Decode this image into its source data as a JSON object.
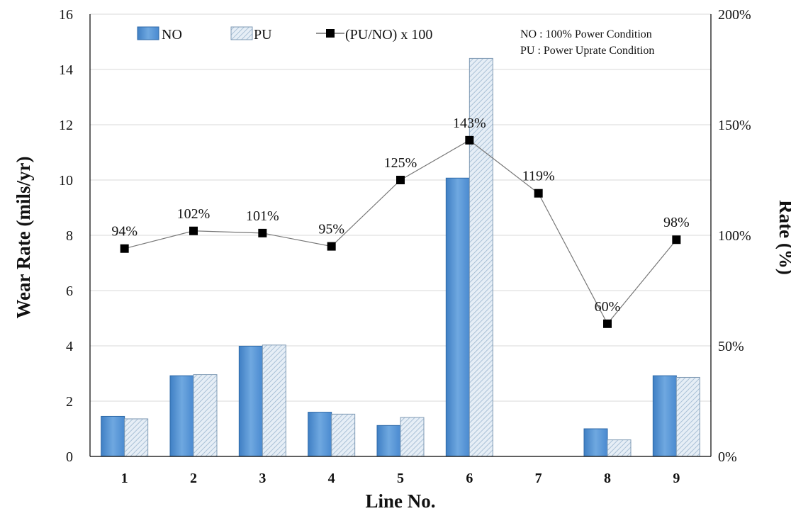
{
  "chart_data": {
    "type": "bar",
    "categories": [
      "1",
      "2",
      "3",
      "4",
      "5",
      "6",
      "7",
      "8",
      "9"
    ],
    "series": [
      {
        "name": "NO",
        "kind": "bar",
        "axis": "left",
        "color": "#5b9bd5",
        "values": [
          1.45,
          2.92,
          3.99,
          1.6,
          1.12,
          10.07,
          0,
          1.0,
          2.92
        ]
      },
      {
        "name": "PU",
        "kind": "bar",
        "axis": "left",
        "color": "#dbe7f1",
        "pattern": "diagonal-hatch",
        "values": [
          1.36,
          2.96,
          4.03,
          1.53,
          1.41,
          14.4,
          0,
          0.6,
          2.86
        ]
      },
      {
        "name": "(PU/NO) x 100",
        "kind": "line",
        "axis": "right",
        "color": "#000000",
        "marker": "square",
        "values": [
          94,
          102,
          101,
          95,
          125,
          143,
          119,
          60,
          98
        ],
        "labels": [
          "94%",
          "102%",
          "101%",
          "95%",
          "125%",
          "143%",
          "119%",
          "60%",
          "98%"
        ]
      }
    ],
    "xlabel": "Line No.",
    "ylabel": "Wear Rate (mils/yr)",
    "y2label": "Rate (%)",
    "ylim": [
      0,
      16
    ],
    "yticks": [
      0,
      2,
      4,
      6,
      8,
      10,
      12,
      14,
      16
    ],
    "y2lim": [
      0,
      200
    ],
    "y2ticks": [
      "0%",
      "50%",
      "100%",
      "150%",
      "200%"
    ],
    "grid": "horizontal",
    "legend_position": "top",
    "notes": [
      "NO : 100%  Power Condition",
      "PU : Power Uprate Condition"
    ]
  }
}
